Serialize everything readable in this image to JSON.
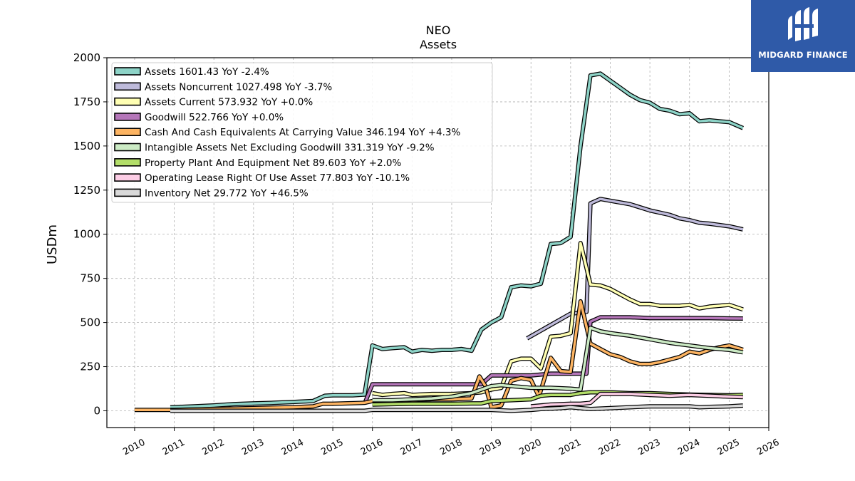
{
  "logo": {
    "text": "MIDGARD FINANCE",
    "background": "#2f5aa8"
  },
  "chart_data": {
    "type": "line",
    "title": "NEO",
    "subtitle": "Assets",
    "ylabel": "USDm",
    "xlabel": "",
    "xlim": [
      2009.3,
      2026.0
    ],
    "ylim": [
      -95,
      2000
    ],
    "yticks": [
      0,
      250,
      500,
      750,
      1000,
      1250,
      1500,
      1750,
      2000
    ],
    "xticks": [
      2010,
      2011,
      2012,
      2013,
      2014,
      2015,
      2016,
      2017,
      2018,
      2019,
      2020,
      2021,
      2022,
      2023,
      2024,
      2025,
      2026
    ],
    "grid": true,
    "legend_position": "upper-left",
    "series": [
      {
        "name": "Assets",
        "legend": "Assets  1601.43 YoY -2.4%",
        "color": "#8dd3c7",
        "points": [
          [
            2010.9,
            20
          ],
          [
            2011.5,
            25
          ],
          [
            2012.0,
            30
          ],
          [
            2012.5,
            38
          ],
          [
            2013.0,
            42
          ],
          [
            2013.5,
            45
          ],
          [
            2014.0,
            50
          ],
          [
            2014.5,
            55
          ],
          [
            2014.8,
            85
          ],
          [
            2015.0,
            88
          ],
          [
            2015.5,
            88
          ],
          [
            2015.8,
            92
          ],
          [
            2016.0,
            370
          ],
          [
            2016.25,
            350
          ],
          [
            2016.5,
            355
          ],
          [
            2016.8,
            360
          ],
          [
            2017.0,
            335
          ],
          [
            2017.25,
            345
          ],
          [
            2017.5,
            340
          ],
          [
            2017.75,
            345
          ],
          [
            2018.0,
            345
          ],
          [
            2018.25,
            350
          ],
          [
            2018.5,
            340
          ],
          [
            2018.75,
            460
          ],
          [
            2019.0,
            500
          ],
          [
            2019.25,
            530
          ],
          [
            2019.5,
            700
          ],
          [
            2019.75,
            710
          ],
          [
            2020.0,
            705
          ],
          [
            2020.25,
            720
          ],
          [
            2020.5,
            945
          ],
          [
            2020.75,
            950
          ],
          [
            2021.0,
            985
          ],
          [
            2021.25,
            1500
          ],
          [
            2021.5,
            1900
          ],
          [
            2021.75,
            1910
          ],
          [
            2022.0,
            1870
          ],
          [
            2022.25,
            1830
          ],
          [
            2022.5,
            1790
          ],
          [
            2022.75,
            1760
          ],
          [
            2023.0,
            1745
          ],
          [
            2023.25,
            1710
          ],
          [
            2023.5,
            1700
          ],
          [
            2023.75,
            1680
          ],
          [
            2024.0,
            1685
          ],
          [
            2024.25,
            1640
          ],
          [
            2024.5,
            1645
          ],
          [
            2024.75,
            1640
          ],
          [
            2025.0,
            1635
          ],
          [
            2025.35,
            1601.43
          ]
        ]
      },
      {
        "name": "Assets Noncurrent",
        "legend": "Assets Noncurrent  1027.498 YoY -3.7%",
        "color": "#bebada",
        "points": [
          [
            2019.9,
            410
          ],
          [
            2021.0,
            550
          ],
          [
            2021.4,
            560
          ],
          [
            2021.5,
            1175
          ],
          [
            2021.75,
            1200
          ],
          [
            2022.0,
            1190
          ],
          [
            2022.5,
            1170
          ],
          [
            2023.0,
            1135
          ],
          [
            2023.5,
            1110
          ],
          [
            2023.75,
            1090
          ],
          [
            2024.0,
            1080
          ],
          [
            2024.25,
            1065
          ],
          [
            2024.5,
            1060
          ],
          [
            2025.0,
            1045
          ],
          [
            2025.35,
            1027.498
          ]
        ]
      },
      {
        "name": "Assets Current",
        "legend": "Assets Current  573.932 YoY +0.0%",
        "color": "#ffffb3",
        "points": [
          [
            2016.0,
            100
          ],
          [
            2016.25,
            90
          ],
          [
            2016.5,
            95
          ],
          [
            2016.8,
            100
          ],
          [
            2017.0,
            90
          ],
          [
            2017.5,
            95
          ],
          [
            2018.0,
            95
          ],
          [
            2018.5,
            100
          ],
          [
            2018.75,
            105
          ],
          [
            2019.0,
            120
          ],
          [
            2019.25,
            130
          ],
          [
            2019.5,
            280
          ],
          [
            2019.75,
            295
          ],
          [
            2020.0,
            295
          ],
          [
            2020.25,
            240
          ],
          [
            2020.5,
            420
          ],
          [
            2020.75,
            425
          ],
          [
            2021.0,
            440
          ],
          [
            2021.25,
            950
          ],
          [
            2021.5,
            715
          ],
          [
            2021.75,
            710
          ],
          [
            2022.0,
            690
          ],
          [
            2022.25,
            660
          ],
          [
            2022.5,
            630
          ],
          [
            2022.75,
            605
          ],
          [
            2023.0,
            605
          ],
          [
            2023.25,
            595
          ],
          [
            2023.5,
            595
          ],
          [
            2023.75,
            595
          ],
          [
            2024.0,
            600
          ],
          [
            2024.25,
            580
          ],
          [
            2024.5,
            590
          ],
          [
            2024.75,
            595
          ],
          [
            2025.0,
            600
          ],
          [
            2025.35,
            573.932
          ]
        ]
      },
      {
        "name": "Goodwill",
        "legend": "Goodwill  522.766 YoY +0.0%",
        "color": "#b576b9",
        "points": [
          [
            2015.8,
            40
          ],
          [
            2016.0,
            150
          ],
          [
            2016.5,
            150
          ],
          [
            2017.0,
            150
          ],
          [
            2017.5,
            150
          ],
          [
            2018.0,
            150
          ],
          [
            2018.5,
            150
          ],
          [
            2018.75,
            150
          ],
          [
            2019.0,
            200
          ],
          [
            2019.5,
            200
          ],
          [
            2020.0,
            200
          ],
          [
            2020.5,
            210
          ],
          [
            2021.0,
            210
          ],
          [
            2021.4,
            210
          ],
          [
            2021.5,
            505
          ],
          [
            2021.75,
            530
          ],
          [
            2022.0,
            530
          ],
          [
            2022.5,
            530
          ],
          [
            2023.0,
            525
          ],
          [
            2023.5,
            525
          ],
          [
            2024.0,
            525
          ],
          [
            2024.5,
            525
          ],
          [
            2025.0,
            523
          ],
          [
            2025.35,
            522.766
          ]
        ]
      },
      {
        "name": "Cash And Cash Equivalents At Carrying Value",
        "legend": "Cash And Cash Equivalents At Carrying Value  346.194 YoY +4.3%",
        "color": "#fdb462",
        "points": [
          [
            2010.0,
            5
          ],
          [
            2010.9,
            5
          ],
          [
            2011.0,
            5
          ],
          [
            2012.0,
            10
          ],
          [
            2013.0,
            15
          ],
          [
            2014.0,
            20
          ],
          [
            2014.5,
            25
          ],
          [
            2014.75,
            40
          ],
          [
            2015.0,
            40
          ],
          [
            2015.8,
            45
          ],
          [
            2016.0,
            55
          ],
          [
            2016.5,
            55
          ],
          [
            2017.0,
            60
          ],
          [
            2017.5,
            65
          ],
          [
            2018.0,
            65
          ],
          [
            2018.5,
            70
          ],
          [
            2018.7,
            195
          ],
          [
            2018.85,
            140
          ],
          [
            2019.0,
            20
          ],
          [
            2019.25,
            30
          ],
          [
            2019.5,
            170
          ],
          [
            2019.75,
            185
          ],
          [
            2020.0,
            175
          ],
          [
            2020.2,
            80
          ],
          [
            2020.5,
            300
          ],
          [
            2020.75,
            225
          ],
          [
            2021.0,
            220
          ],
          [
            2021.25,
            620
          ],
          [
            2021.5,
            380
          ],
          [
            2021.75,
            350
          ],
          [
            2022.0,
            320
          ],
          [
            2022.25,
            305
          ],
          [
            2022.5,
            280
          ],
          [
            2022.75,
            265
          ],
          [
            2023.0,
            265
          ],
          [
            2023.25,
            275
          ],
          [
            2023.5,
            290
          ],
          [
            2023.75,
            305
          ],
          [
            2024.0,
            335
          ],
          [
            2024.25,
            325
          ],
          [
            2024.5,
            345
          ],
          [
            2024.75,
            360
          ],
          [
            2025.0,
            370
          ],
          [
            2025.35,
            346.194
          ]
        ]
      },
      {
        "name": "Intangible Assets Net Excluding Goodwill",
        "legend": "Intangible Assets Net Excluding Goodwill  331.319 YoY -9.2%",
        "color": "#ccebc5",
        "points": [
          [
            2016.0,
            60
          ],
          [
            2016.5,
            60
          ],
          [
            2017.0,
            65
          ],
          [
            2017.5,
            70
          ],
          [
            2018.0,
            80
          ],
          [
            2018.5,
            100
          ],
          [
            2018.75,
            120
          ],
          [
            2019.0,
            140
          ],
          [
            2019.25,
            145
          ],
          [
            2019.5,
            140
          ],
          [
            2019.75,
            135
          ],
          [
            2020.0,
            130
          ],
          [
            2020.5,
            130
          ],
          [
            2021.0,
            125
          ],
          [
            2021.25,
            120
          ],
          [
            2021.5,
            470
          ],
          [
            2021.75,
            450
          ],
          [
            2022.0,
            440
          ],
          [
            2022.5,
            425
          ],
          [
            2023.0,
            405
          ],
          [
            2023.5,
            385
          ],
          [
            2024.0,
            370
          ],
          [
            2024.5,
            355
          ],
          [
            2025.0,
            345
          ],
          [
            2025.35,
            331.319
          ]
        ]
      },
      {
        "name": "Property Plant And Equipment Net",
        "legend": "Property Plant And Equipment Net  89.603 YoY +2.0%",
        "color": "#b3de69",
        "points": [
          [
            2016.0,
            35
          ],
          [
            2016.5,
            38
          ],
          [
            2017.0,
            40
          ],
          [
            2017.5,
            40
          ],
          [
            2018.0,
            40
          ],
          [
            2018.5,
            42
          ],
          [
            2018.75,
            42
          ],
          [
            2019.0,
            55
          ],
          [
            2019.5,
            60
          ],
          [
            2020.0,
            65
          ],
          [
            2020.25,
            85
          ],
          [
            2020.5,
            90
          ],
          [
            2021.0,
            90
          ],
          [
            2021.25,
            100
          ],
          [
            2021.5,
            105
          ],
          [
            2022.0,
            105
          ],
          [
            2022.5,
            100
          ],
          [
            2023.0,
            100
          ],
          [
            2023.5,
            95
          ],
          [
            2024.0,
            92
          ],
          [
            2024.5,
            90
          ],
          [
            2025.0,
            88
          ],
          [
            2025.35,
            89.603
          ]
        ]
      },
      {
        "name": "Operating Lease Right Of Use Asset",
        "legend": "Operating Lease Right Of Use Asset  77.803 YoY -10.1%",
        "color": "#fccde5",
        "points": [
          [
            2020.0,
            25
          ],
          [
            2020.5,
            35
          ],
          [
            2021.0,
            40
          ],
          [
            2021.25,
            40
          ],
          [
            2021.5,
            45
          ],
          [
            2021.75,
            95
          ],
          [
            2022.0,
            95
          ],
          [
            2022.5,
            95
          ],
          [
            2023.0,
            90
          ],
          [
            2023.5,
            85
          ],
          [
            2024.0,
            90
          ],
          [
            2024.5,
            85
          ],
          [
            2025.0,
            80
          ],
          [
            2025.35,
            77.803
          ]
        ]
      },
      {
        "name": "Inventory Net",
        "legend": "Inventory Net  29.772 YoY +46.5%",
        "color": "#d9d9d9",
        "points": [
          [
            2010.9,
            0
          ],
          [
            2011.5,
            0
          ],
          [
            2012.0,
            0
          ],
          [
            2013.0,
            0
          ],
          [
            2014.0,
            0
          ],
          [
            2015.0,
            0
          ],
          [
            2015.8,
            0
          ],
          [
            2016.0,
            5
          ],
          [
            2017.0,
            5
          ],
          [
            2018.0,
            5
          ],
          [
            2018.75,
            5
          ],
          [
            2019.0,
            5
          ],
          [
            2019.5,
            0
          ],
          [
            2020.0,
            5
          ],
          [
            2020.25,
            10
          ],
          [
            2020.75,
            15
          ],
          [
            2021.0,
            20
          ],
          [
            2021.25,
            15
          ],
          [
            2021.5,
            10
          ],
          [
            2022.0,
            15
          ],
          [
            2022.5,
            20
          ],
          [
            2023.0,
            25
          ],
          [
            2023.5,
            25
          ],
          [
            2024.0,
            25
          ],
          [
            2024.25,
            20
          ],
          [
            2024.5,
            22
          ],
          [
            2025.0,
            25
          ],
          [
            2025.35,
            29.772
          ]
        ]
      }
    ]
  }
}
